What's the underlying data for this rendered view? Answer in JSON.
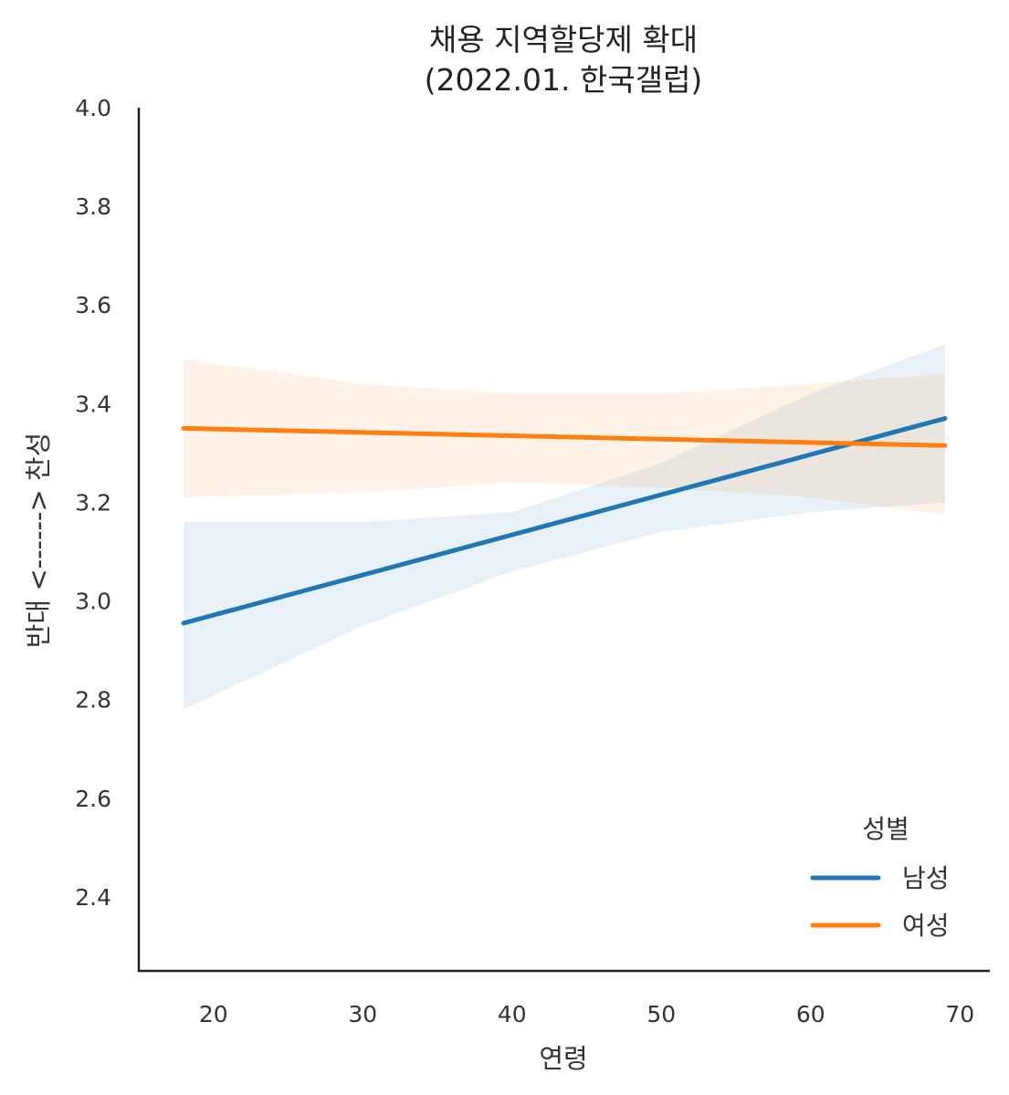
{
  "chart_data": {
    "type": "line",
    "title_line1": "채용 지역할당제 확대",
    "title_line2": "(2022.01. 한국갤럽)",
    "xlabel": "연령",
    "ylabel": "반대 <------> 찬성",
    "xlim": [
      15,
      72
    ],
    "ylim": [
      2.25,
      4.0
    ],
    "xticks": [
      "20",
      "30",
      "40",
      "50",
      "60",
      "70"
    ],
    "yticks": [
      "2.4",
      "2.6",
      "2.8",
      "3.0",
      "3.2",
      "3.4",
      "3.6",
      "3.8",
      "4.0"
    ],
    "legend_title": "성별",
    "legend_position": "lower-right",
    "series": [
      {
        "name": "남성",
        "color": "#1f77b4",
        "x": [
          18,
          69
        ],
        "y": [
          2.955,
          3.37
        ],
        "ci_x": [
          18,
          30,
          40,
          50,
          60,
          69
        ],
        "ci_lower": [
          2.78,
          2.95,
          3.06,
          3.14,
          3.18,
          3.2
        ],
        "ci_upper": [
          3.16,
          3.16,
          3.18,
          3.28,
          3.42,
          3.52
        ]
      },
      {
        "name": "여성",
        "color": "#ff7f0e",
        "x": [
          18,
          69
        ],
        "y": [
          3.35,
          3.315
        ],
        "ci_x": [
          18,
          30,
          40,
          50,
          60,
          69
        ],
        "ci_lower": [
          3.21,
          3.22,
          3.24,
          3.23,
          3.21,
          3.175
        ],
        "ci_upper": [
          3.49,
          3.44,
          3.42,
          3.42,
          3.44,
          3.46
        ]
      }
    ]
  }
}
